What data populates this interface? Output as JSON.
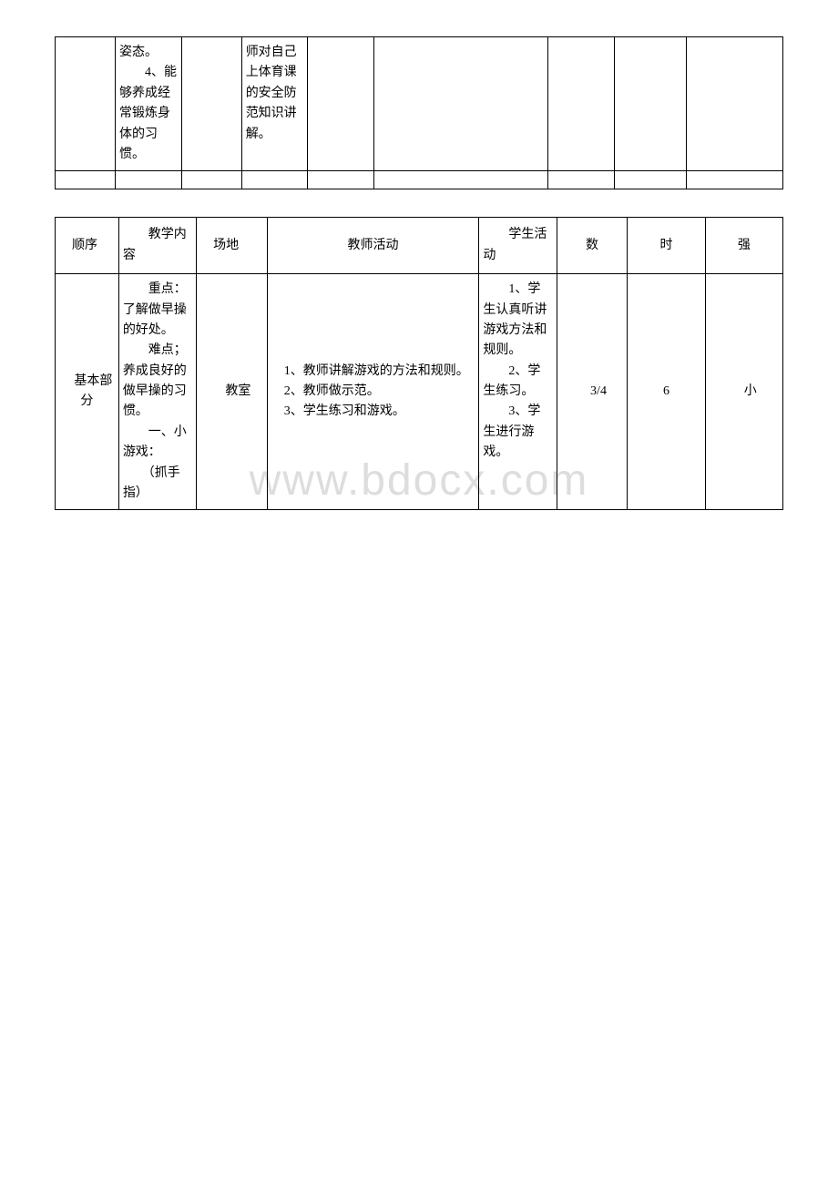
{
  "watermark": "www.bdocx.com",
  "table1": {
    "row1": {
      "col2": "姿态。\n　　4、能够养成经常锻炼身体的习惯。",
      "col4": "师对自己上体育课的安全防范知识讲解。"
    }
  },
  "table2": {
    "headers": {
      "col1": "　顺序",
      "col2": "　　教学内容",
      "col3": "　场地",
      "col4": "教师活动",
      "col5": "　　学生活动",
      "col6": "数",
      "col7": "时",
      "col8": "强"
    },
    "row1": {
      "col1": "　基本部分",
      "col2": "　　重点：了解做早操的好处。\n　　难点；养成良好的做早操的习惯。\n　　一、小游戏：\n　　（抓手指）",
      "col3": "　教室",
      "col4": "　1、教师讲解游戏的方法和规则。\n　2、教师做示范。\n　3、学生练习和游戏。",
      "col5": "　　1、学生认真听讲游戏方法和规则。\n　　2、学生练习。\n　　3、学生进行游戏。",
      "col6": "　3/4",
      "col7": "6",
      "col8": "　小"
    }
  }
}
